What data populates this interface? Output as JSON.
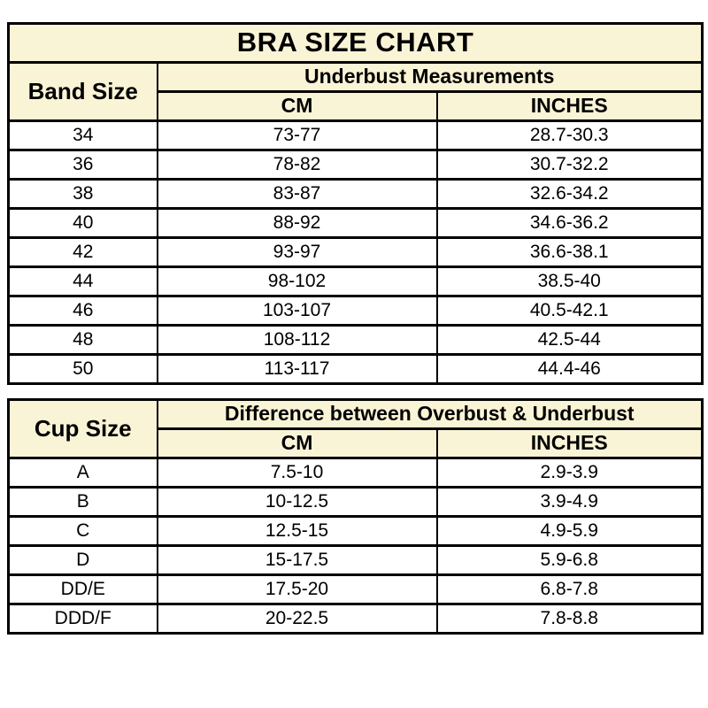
{
  "title": "BRA SIZE CHART",
  "colors": {
    "page_bg": "#ffffff",
    "header_bg": "#FAF4D6",
    "row_bg": "#ffffff",
    "border": "#000000",
    "text": "#000000"
  },
  "chart_data": [
    {
      "type": "table",
      "name": "band_size_table",
      "title": "BRA SIZE CHART",
      "corner_header": "Band Size",
      "group_header": "Underbust Measurements",
      "col_headers": [
        "CM",
        "INCHES"
      ],
      "rows": [
        [
          "34",
          "73-77",
          "28.7-30.3"
        ],
        [
          "36",
          "78-82",
          "30.7-32.2"
        ],
        [
          "38",
          "83-87",
          "32.6-34.2"
        ],
        [
          "40",
          "88-92",
          "34.6-36.2"
        ],
        [
          "42",
          "93-97",
          "36.6-38.1"
        ],
        [
          "44",
          "98-102",
          "38.5-40"
        ],
        [
          "46",
          "103-107",
          "40.5-42.1"
        ],
        [
          "48",
          "108-112",
          "42.5-44"
        ],
        [
          "50",
          "113-117",
          "44.4-46"
        ]
      ]
    },
    {
      "type": "table",
      "name": "cup_size_table",
      "corner_header": "Cup Size",
      "group_header": "Difference between Overbust & Underbust",
      "col_headers": [
        "CM",
        "INCHES"
      ],
      "rows": [
        [
          "A",
          "7.5-10",
          "2.9-3.9"
        ],
        [
          "B",
          "10-12.5",
          "3.9-4.9"
        ],
        [
          "C",
          "12.5-15",
          "4.9-5.9"
        ],
        [
          "D",
          "15-17.5",
          "5.9-6.8"
        ],
        [
          "DD/E",
          "17.5-20",
          "6.8-7.8"
        ],
        [
          "DDD/F",
          "20-22.5",
          "7.8-8.8"
        ]
      ]
    }
  ]
}
